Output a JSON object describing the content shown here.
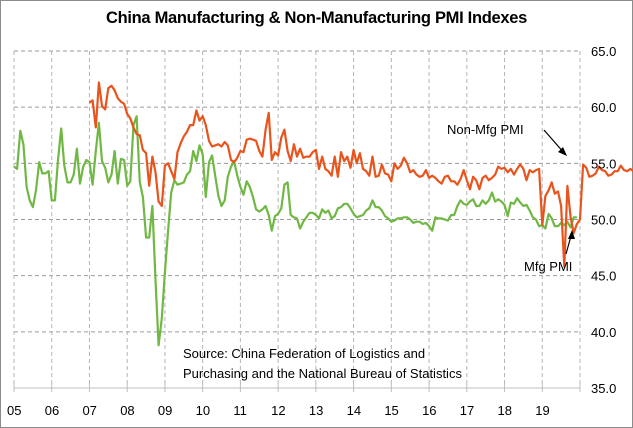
{
  "chart_data": {
    "type": "line",
    "title": "China Manufacturing & Non-Manufacturing PMI Indexes",
    "xlabel": "",
    "ylabel": "",
    "ylim": [
      35,
      65
    ],
    "y_ticks": [
      "35.0",
      "40.0",
      "45.0",
      "50.0",
      "55.0",
      "60.0",
      "65.0"
    ],
    "y_axis_position": "right",
    "x_tick_labels": [
      "05",
      "06",
      "07",
      "08",
      "09",
      "10",
      "11",
      "12",
      "13",
      "14",
      "15",
      "16",
      "17",
      "18",
      "19"
    ],
    "x_start": "2005-01",
    "x_end": "2019-12",
    "grid": true,
    "grid_style": "dashed",
    "legend": "none",
    "annotations": [
      {
        "text": "Non-Mfg  PMI",
        "target_series": "Non-Mfg PMI",
        "placement": "right"
      },
      {
        "text": "Mfg PMI",
        "target_series": "Mfg PMI",
        "placement": "bottom-right"
      }
    ],
    "source_note": [
      "Source:  China Federation  of Logistics and",
      "Purchasing and the National Bureau of Statistics"
    ],
    "series": [
      {
        "name": "Mfg PMI",
        "color": "#70B844",
        "start": "2005-01",
        "frequency": "monthly",
        "values": [
          54.7,
          54.5,
          57.9,
          56.7,
          52.9,
          51.7,
          51.1,
          52.6,
          55.1,
          54.1,
          54.1,
          54.3,
          51.7,
          51.7,
          55.3,
          58.1,
          54.8,
          53.3,
          53.3,
          54.0,
          56.3,
          53.2,
          54.7,
          55.3,
          55.1,
          53.1,
          56.1,
          58.6,
          55.2,
          54.6,
          53.3,
          54.0,
          56.1,
          53.2,
          55.4,
          55.3,
          53.0,
          53.4,
          58.4,
          59.2,
          53.3,
          52.0,
          48.4,
          48.4,
          51.2,
          44.6,
          38.8,
          41.2,
          45.3,
          49.0,
          52.4,
          53.5,
          53.1,
          53.2,
          53.3,
          54.0,
          54.3,
          56.1,
          55.2,
          56.6,
          55.8,
          52.0,
          55.1,
          55.7,
          53.9,
          52.1,
          51.2,
          51.7,
          53.8,
          54.7,
          55.2,
          53.9,
          52.9,
          52.2,
          53.4,
          52.9,
          52.0,
          50.9,
          50.7,
          50.9,
          51.2,
          50.4,
          49.0,
          50.3,
          50.5,
          51.0,
          53.1,
          53.3,
          50.4,
          50.2,
          50.1,
          49.2,
          49.8,
          50.2,
          50.6,
          50.6,
          50.4,
          50.1,
          50.9,
          50.6,
          50.8,
          50.1,
          50.3,
          51.0,
          51.1,
          51.4,
          51.4,
          51.0,
          50.5,
          50.2,
          50.3,
          50.4,
          50.8,
          51.0,
          51.7,
          51.1,
          51.1,
          50.8,
          50.3,
          50.1,
          49.8,
          49.9,
          50.1,
          50.1,
          50.2,
          50.2,
          50.0,
          49.7,
          49.8,
          49.8,
          49.6,
          49.7,
          49.4,
          49.0,
          50.2,
          50.1,
          50.1,
          50.0,
          49.9,
          50.4,
          50.4,
          51.2,
          51.7,
          51.4,
          51.3,
          51.6,
          51.8,
          51.2,
          51.2,
          51.7,
          51.4,
          51.7,
          52.4,
          51.6,
          51.8,
          51.6,
          51.3,
          50.3,
          51.5,
          51.4,
          51.9,
          51.5,
          51.2,
          51.3,
          50.8,
          50.2,
          50.0,
          49.4,
          49.5,
          49.2,
          50.5,
          50.1,
          49.4,
          49.4,
          49.7,
          49.5,
          49.8,
          49.3,
          50.2,
          50.2
        ]
      },
      {
        "name": "Non-Mfg PMI",
        "color": "#E8541C",
        "start": "2007-01",
        "frequency": "monthly",
        "values": [
          60.4,
          60.6,
          58.2,
          62.2,
          60.1,
          59.8,
          61.7,
          61.9,
          61.5,
          60.8,
          60.5,
          60.3,
          59.4,
          59.0,
          58.2,
          57.6,
          57.5,
          56.2,
          55.9,
          53.0,
          55.6,
          54.2,
          51.6,
          51.2,
          54.8,
          55.0,
          54.3,
          53.6,
          56.0,
          56.8,
          57.4,
          57.8,
          58.4,
          58.4,
          59.7,
          58.8,
          59.2,
          58.4,
          57.0,
          56.5,
          56.6,
          56.7,
          56.5,
          56.9,
          56.6,
          55.3,
          55.1,
          55.5,
          56.1,
          56.0,
          57.1,
          57.2,
          57.1,
          57.0,
          56.1,
          55.6,
          58.0,
          59.5,
          55.3,
          56.0,
          55.7,
          57.3,
          58.0,
          56.1,
          55.2,
          56.7,
          55.6,
          56.3,
          55.5,
          55.6,
          55.6,
          56.0,
          56.2,
          54.5,
          55.6,
          54.5,
          54.3,
          53.9,
          55.6,
          53.8,
          56.0,
          55.2,
          55.6,
          54.6,
          56.2,
          55.0,
          55.9,
          54.5,
          54.3,
          53.9,
          55.6,
          53.8,
          53.9,
          54.9,
          54.1,
          54.0,
          53.4,
          55.0,
          54.5,
          54.8,
          55.5,
          55.0,
          54.2,
          54.4,
          54.0,
          53.8,
          53.9,
          54.4,
          53.7,
          53.9,
          53.7,
          53.4,
          53.2,
          53.8,
          53.9,
          53.4,
          53.4,
          53.1,
          53.6,
          54.4,
          53.5,
          52.7,
          53.8,
          53.5,
          52.7,
          53.7,
          53.9,
          53.5,
          53.7,
          54.0,
          54.7,
          54.5,
          54.6,
          54.2,
          54.5,
          54.0,
          54.5,
          54.9,
          54.5,
          53.5,
          54.4,
          54.2,
          54.4,
          54.5,
          49.5,
          52.1,
          52.6,
          53.3,
          52.3,
          52.5,
          51.2,
          45.8,
          53.0,
          50.2,
          48.8,
          49.6,
          50.0,
          54.9,
          54.6,
          53.8,
          53.9,
          54.1,
          54.7,
          54.4,
          54.3,
          53.9,
          54.0,
          54.3,
          54.3,
          54.8,
          54.4,
          54.3,
          54.5,
          54.3,
          53.6,
          53.4,
          53.4,
          52.8,
          54.4,
          54.5
        ]
      }
    ]
  }
}
